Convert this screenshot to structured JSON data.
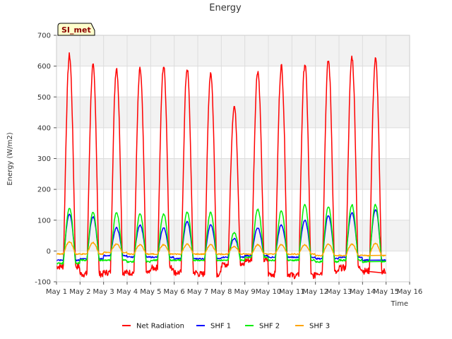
{
  "chart_data": {
    "type": "line",
    "title": "Energy",
    "xlabel": "Time",
    "ylabel": "Energy (W/m2)",
    "site_label": "SI_met",
    "ylim": [
      -100,
      700
    ],
    "yticks": [
      -100,
      0,
      100,
      200,
      300,
      400,
      500,
      600,
      700
    ],
    "xlim": [
      1,
      16
    ],
    "xticks": [
      1,
      2,
      3,
      4,
      5,
      6,
      7,
      8,
      9,
      10,
      11,
      12,
      13,
      14,
      15,
      16
    ],
    "xtick_labels": [
      "May 1",
      "May 2",
      "May 3",
      "May 4",
      "May 5",
      "May 6",
      "May 7",
      "May 8",
      "May 9",
      "May 10",
      "May 11",
      "May 12",
      "May 13",
      "May 14",
      "May 15",
      "May 16"
    ],
    "grid": true,
    "legend_position": "bottom",
    "days": [
      1,
      2,
      3,
      4,
      5,
      6,
      7,
      8,
      9,
      10,
      11,
      12,
      13,
      14,
      15
    ],
    "series": [
      {
        "name": "Net Radiation",
        "color": "#ff0000",
        "daily_peak": [
          635,
          600,
          595,
          590,
          600,
          592,
          580,
          470,
          585,
          600,
          608,
          618,
          630,
          622
        ],
        "daily_night": [
          -50,
          -75,
          -70,
          -70,
          -55,
          -70,
          -75,
          -45,
          -30,
          -75,
          -80,
          -70,
          -55,
          -65
        ]
      },
      {
        "name": "SHF 1",
        "color": "#0000ff",
        "daily_peak": [
          120,
          110,
          75,
          85,
          75,
          95,
          85,
          40,
          75,
          85,
          100,
          115,
          125,
          135
        ],
        "daily_night": [
          -30,
          -25,
          -15,
          -20,
          -20,
          -25,
          -25,
          -20,
          -15,
          -20,
          -20,
          -25,
          -20,
          -30
        ]
      },
      {
        "name": "SHF 2",
        "color": "#00ee00",
        "daily_peak": [
          140,
          125,
          125,
          120,
          120,
          125,
          125,
          60,
          135,
          130,
          150,
          145,
          150,
          150
        ],
        "daily_night": [
          -40,
          -30,
          -30,
          -35,
          -30,
          -30,
          -30,
          -30,
          -20,
          -30,
          -30,
          -35,
          -30,
          -35
        ]
      },
      {
        "name": "SHF 3",
        "color": "#ffa500",
        "daily_peak": [
          30,
          27,
          22,
          20,
          20,
          22,
          20,
          15,
          20,
          20,
          20,
          22,
          22,
          25
        ],
        "daily_night": [
          -10,
          -10,
          -5,
          -10,
          -10,
          -10,
          -10,
          -10,
          -10,
          -10,
          -10,
          -15,
          -15,
          -15
        ]
      }
    ]
  }
}
